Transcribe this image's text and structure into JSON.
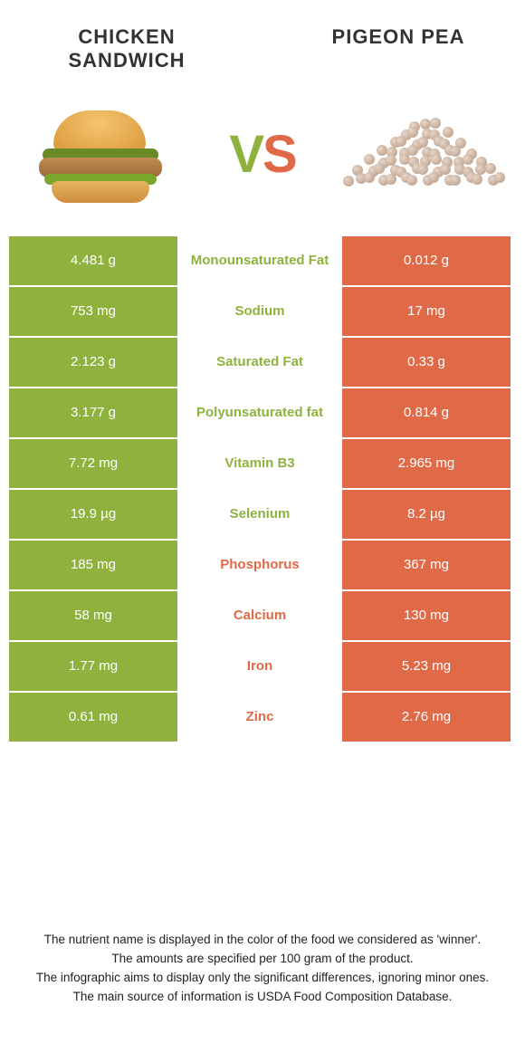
{
  "colors": {
    "left": "#8fb23e",
    "right": "#e06a47",
    "row_gap": "#ffffff",
    "text_footer": "#222222"
  },
  "foods": {
    "left": {
      "name": "Chicken Sandwich"
    },
    "right": {
      "name": "Pigeon pea"
    }
  },
  "vs": {
    "v": "V",
    "s": "S"
  },
  "rows": [
    {
      "left": "4.481 g",
      "label": "Monounsaturated Fat",
      "right": "0.012 g",
      "winner": "left"
    },
    {
      "left": "753 mg",
      "label": "Sodium",
      "right": "17 mg",
      "winner": "left"
    },
    {
      "left": "2.123 g",
      "label": "Saturated Fat",
      "right": "0.33 g",
      "winner": "left"
    },
    {
      "left": "3.177 g",
      "label": "Polyunsaturated fat",
      "right": "0.814 g",
      "winner": "left"
    },
    {
      "left": "7.72 mg",
      "label": "Vitamin B3",
      "right": "2.965 mg",
      "winner": "left"
    },
    {
      "left": "19.9 µg",
      "label": "Selenium",
      "right": "8.2 µg",
      "winner": "left"
    },
    {
      "left": "185 mg",
      "label": "Phosphorus",
      "right": "367 mg",
      "winner": "right"
    },
    {
      "left": "58 mg",
      "label": "Calcium",
      "right": "130 mg",
      "winner": "right"
    },
    {
      "left": "1.77 mg",
      "label": "Iron",
      "right": "5.23 mg",
      "winner": "right"
    },
    {
      "left": "0.61 mg",
      "label": "Zinc",
      "right": "2.76 mg",
      "winner": "right"
    }
  ],
  "footer": {
    "line1": "The nutrient name is displayed in the color of the food we considered as 'winner'.",
    "line2": "The amounts are specified per 100 gram of the product.",
    "line3": "The infographic aims to display only the significant differences, ignoring minor ones.",
    "line4": "The main source of information is USDA Food Composition Database."
  }
}
